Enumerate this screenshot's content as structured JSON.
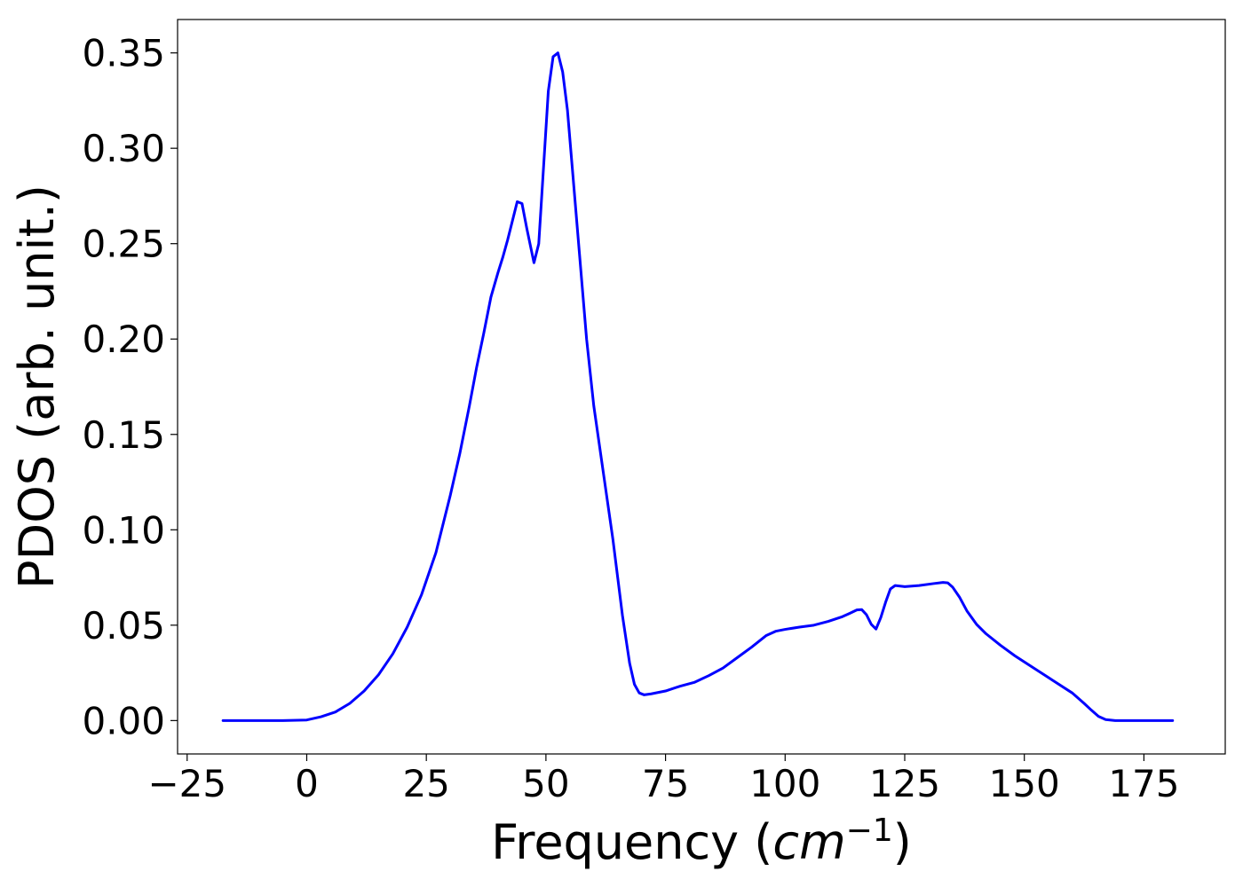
{
  "chart_data": {
    "type": "line",
    "title": "",
    "xlabel_prefix": "Frequency (",
    "xlabel_unit_base": "cm",
    "xlabel_unit_exp": "−1",
    "xlabel_suffix": ")",
    "ylabel": "PDOS (arb. unit.)",
    "xlim": [
      -27,
      192
    ],
    "ylim": [
      -0.0175,
      0.3675
    ],
    "xticks": [
      -25,
      0,
      25,
      50,
      75,
      100,
      125,
      150,
      175
    ],
    "xtick_labels": [
      "−25",
      "0",
      "25",
      "50",
      "75",
      "100",
      "125",
      "150",
      "175"
    ],
    "yticks": [
      0,
      0.05,
      0.1,
      0.15,
      0.2,
      0.25,
      0.3,
      0.35
    ],
    "ytick_labels": [
      "0.00",
      "0.05",
      "0.10",
      "0.15",
      "0.20",
      "0.25",
      "0.30",
      "0.35"
    ],
    "grid": false,
    "legend": "none",
    "series": [
      {
        "color": "#0000ff",
        "x": [
          -17.5,
          -10,
          -5,
          0,
          3,
          6,
          9,
          12,
          15,
          18,
          21,
          24,
          27,
          30,
          32,
          34,
          35.5,
          37,
          38.5,
          40,
          41,
          42,
          43,
          44,
          45,
          46,
          47.5,
          48.5,
          49.5,
          50.5,
          51.5,
          52.5,
          53.5,
          54.5,
          55.5,
          57,
          58.5,
          60,
          62,
          64,
          66,
          67.5,
          68.5,
          69.5,
          70.5,
          72,
          75,
          78,
          81,
          84,
          87,
          90,
          93,
          96,
          98,
          100,
          103,
          106,
          109,
          112,
          113.5,
          115,
          116,
          117,
          118,
          119,
          120,
          121,
          122,
          123,
          125,
          128,
          131,
          133,
          134,
          135,
          136.5,
          138,
          140,
          142,
          145,
          148,
          152,
          156,
          160,
          162.5,
          164,
          165.5,
          167,
          169,
          175,
          181
        ],
        "y": [
          0,
          0,
          0,
          0.0003,
          0.002,
          0.0045,
          0.009,
          0.0155,
          0.024,
          0.035,
          0.049,
          0.066,
          0.088,
          0.118,
          0.14,
          0.165,
          0.185,
          0.203,
          0.222,
          0.235,
          0.243,
          0.252,
          0.262,
          0.272,
          0.271,
          0.258,
          0.24,
          0.25,
          0.29,
          0.33,
          0.348,
          0.35,
          0.34,
          0.32,
          0.29,
          0.245,
          0.2,
          0.165,
          0.13,
          0.095,
          0.055,
          0.03,
          0.019,
          0.0145,
          0.0135,
          0.014,
          0.0155,
          0.018,
          0.02,
          0.0235,
          0.0275,
          0.033,
          0.0385,
          0.0445,
          0.0468,
          0.0478,
          0.049,
          0.05,
          0.052,
          0.0545,
          0.0562,
          0.058,
          0.0582,
          0.0555,
          0.0505,
          0.048,
          0.054,
          0.062,
          0.069,
          0.0708,
          0.0702,
          0.0708,
          0.0718,
          0.0724,
          0.0722,
          0.07,
          0.0645,
          0.0575,
          0.0505,
          0.0455,
          0.0395,
          0.034,
          0.0275,
          0.021,
          0.0145,
          0.009,
          0.0055,
          0.0022,
          0.0005,
          0,
          0,
          0
        ]
      }
    ]
  }
}
